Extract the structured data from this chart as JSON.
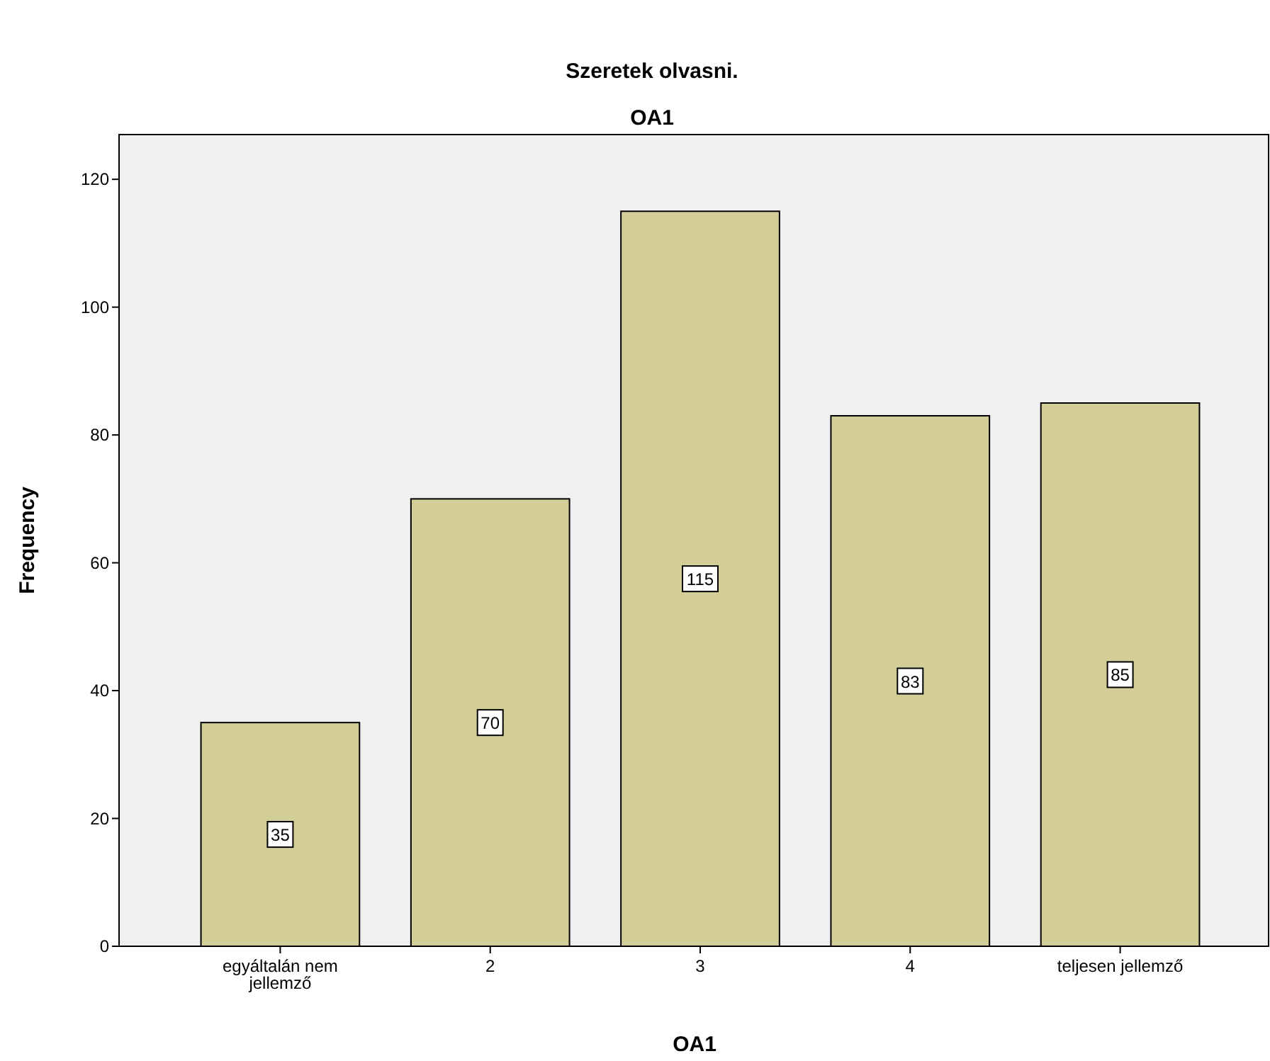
{
  "chart_data": {
    "type": "bar",
    "title": "Szeretek olvasni.",
    "subtitle": "OA1",
    "xlabel": "OA1",
    "ylabel": "Frequency",
    "categories": [
      "egyáltalán nem jellemző",
      "2",
      "3",
      "4",
      "teljesen jellemző"
    ],
    "values": [
      35,
      70,
      115,
      83,
      85
    ],
    "color": "#d3ce97",
    "ylim": [
      0,
      127
    ],
    "yticks": [
      0,
      20,
      40,
      60,
      80,
      100,
      120
    ],
    "grid": false,
    "data_labels": true
  }
}
